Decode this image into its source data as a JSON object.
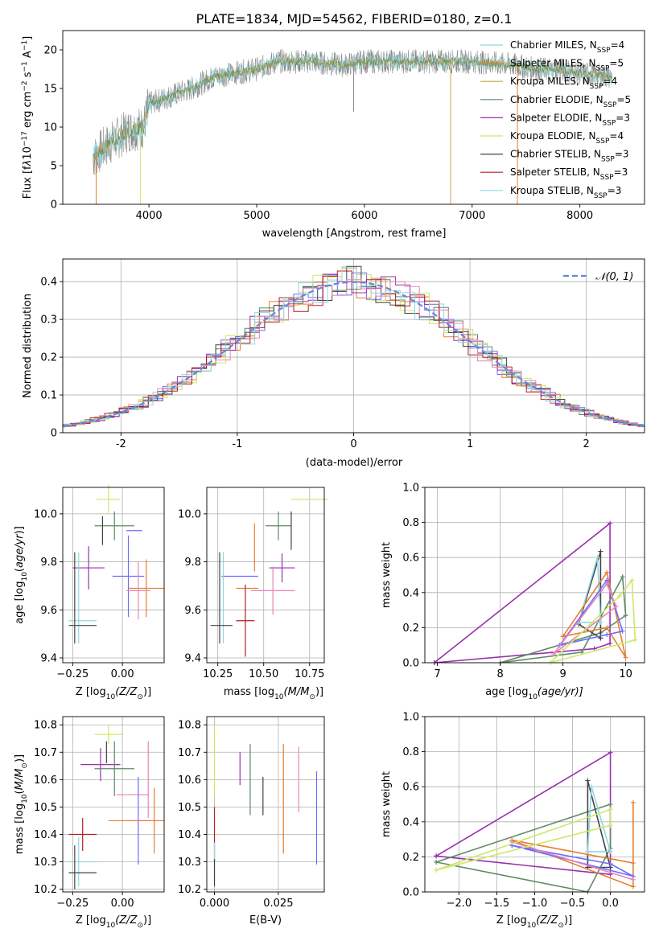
{
  "figure": {
    "title": "PLATE=1834, MJD=54562, FIBERID=0180, z=0.1"
  },
  "colors": {
    "c1": "#6b6bff",
    "c2": "#8a8a8a",
    "c3": "#e87d2c",
    "c4": "#5f8a64",
    "c5": "#9b2fae",
    "c6": "#cde86a",
    "c7": "#444444",
    "c8": "#b21e1e",
    "c9": "#8fd8e0",
    "c10": "#e685b8",
    "normal": "#5b8dd9"
  },
  "chart_data": [
    {
      "id": "spectrum",
      "type": "line",
      "xlabel": "wavelength [Angstrom, rest frame]",
      "xlim": [
        3200,
        8600
      ],
      "ylim": [
        0,
        22.5
      ],
      "xticks": [
        4000,
        5000,
        6000,
        7000,
        8000
      ],
      "yticks": [
        0,
        5,
        10,
        15,
        20
      ],
      "grid": false,
      "legend_position": "top-right",
      "legend": [
        {
          "label": "Chabrier MILES, N",
          "sub": "SSP",
          "eq": "=4",
          "color": "#8fd8e0"
        },
        {
          "label": "Salpeter MILES, N",
          "sub": "SSP",
          "eq": "=5",
          "color": "#e87d2c"
        },
        {
          "label": "Kroupa MILES, N",
          "sub": "SSP",
          "eq": "=4",
          "color": "#c7a24a"
        },
        {
          "label": "Chabrier ELODIE, N",
          "sub": "SSP",
          "eq": "=5",
          "color": "#5f8a64"
        },
        {
          "label": "Salpeter ELODIE, N",
          "sub": "SSP",
          "eq": "=3",
          "color": "#9b2fae"
        },
        {
          "label": "Kroupa ELODIE, N",
          "sub": "SSP",
          "eq": "=4",
          "color": "#cde86a"
        },
        {
          "label": "Chabrier STELIB, N",
          "sub": "SSP",
          "eq": "=3",
          "color": "#444444"
        },
        {
          "label": "Salpeter STELIB, N",
          "sub": "SSP",
          "eq": "=3",
          "color": "#b21e1e"
        },
        {
          "label": "Kroupa STELIB, N",
          "sub": "SSP",
          "eq": "=3",
          "color": "#8fd8e0"
        }
      ],
      "continuum": [
        [
          3480,
          6
        ],
        [
          3600,
          7.5
        ],
        [
          3800,
          9.5
        ],
        [
          3950,
          10
        ],
        [
          4000,
          13
        ],
        [
          4200,
          14
        ],
        [
          4400,
          15
        ],
        [
          4600,
          16.5
        ],
        [
          4800,
          17
        ],
        [
          5000,
          17.5
        ],
        [
          5200,
          18.5
        ],
        [
          5500,
          18.5
        ],
        [
          5800,
          18
        ],
        [
          6000,
          18.5
        ],
        [
          6300,
          18.5
        ],
        [
          6600,
          18.5
        ],
        [
          7000,
          18.5
        ],
        [
          7400,
          18
        ],
        [
          7600,
          17.5
        ],
        [
          7800,
          17.5
        ],
        [
          8000,
          17
        ],
        [
          8300,
          16.5
        ]
      ]
    },
    {
      "id": "residuals",
      "type": "line",
      "xlabel": "(data-model)/error",
      "ylabel": "Normed distribution",
      "xlim": [
        -2.5,
        2.5
      ],
      "ylim": [
        0,
        0.46
      ],
      "xticks": [
        -2,
        -1,
        0,
        1,
        2
      ],
      "yticks": [
        0.0,
        0.1,
        0.2,
        0.3,
        0.4
      ],
      "grid": true,
      "legend_position": "top-right",
      "legend_label": "𝒩(0, 1)",
      "bin_width": 0.125
    },
    {
      "id": "age-vs-Z",
      "type": "scatter",
      "xlabel_pre": "Z [log",
      "xlabel_sub": "10",
      "xlabel_post": "(Z/Z",
      "xlabel_sun": "⊙",
      "xlabel_end": ")]",
      "ylabel_text": "age  [log10(age/yr)]",
      "xlim": [
        -0.3,
        0.21
      ],
      "ylim": [
        9.38,
        10.11
      ],
      "xticks": [
        -0.25,
        0.0
      ],
      "xticklabels": [
        "−0.25",
        "0.00"
      ],
      "yticks": [
        9.4,
        9.6,
        9.8,
        10.0
      ],
      "yticklabels": [
        "9.4",
        "9.6",
        "9.8",
        "10.0"
      ],
      "grid": true,
      "points": [
        {
          "x": -0.07,
          "y": 10.06,
          "xerr": 0.06,
          "yerr": 0.06,
          "color": "#cde86a"
        },
        {
          "x": -0.04,
          "y": 9.95,
          "xerr": 0.1,
          "yerr": 0.06,
          "color": "#5f8a64"
        },
        {
          "x": -0.1,
          "y": 9.93,
          "xerr": 0.0,
          "yerr": 0.06,
          "color": "#444444"
        },
        {
          "x": 0.06,
          "y": 9.93,
          "xerr": 0.04,
          "yerr": 0.0,
          "color": "#6b6bff"
        },
        {
          "x": -0.17,
          "y": 9.775,
          "xerr": 0.08,
          "yerr": 0.09,
          "color": "#9b2fae"
        },
        {
          "x": 0.03,
          "y": 9.74,
          "xerr": 0.08,
          "yerr": 0.17,
          "color": "#6b6bff"
        },
        {
          "x": 0.12,
          "y": 9.69,
          "xerr": 0.09,
          "yerr": 0.12,
          "color": "#e87d2c"
        },
        {
          "x": 0.08,
          "y": 9.68,
          "xerr": 0.06,
          "yerr": 0.12,
          "color": "#e685b8"
        },
        {
          "x": -0.2,
          "y": 9.555,
          "xerr": 0.07,
          "yerr": 0.0,
          "color": "#8fd8e0"
        },
        {
          "x": -0.22,
          "y": 9.65,
          "xerr": 0.0,
          "yerr": 0.19,
          "color": "#8fd8e0"
        },
        {
          "x": -0.2,
          "y": 9.535,
          "xerr": 0.07,
          "yerr": 0.0,
          "color": "#444444"
        },
        {
          "x": -0.24,
          "y": 9.65,
          "xerr": 0.0,
          "yerr": 0.19,
          "color": "#444444"
        }
      ]
    },
    {
      "id": "age-vs-mass",
      "type": "scatter",
      "xlabel_pre": "mass [log",
      "xlabel_sub": "10",
      "xlabel_post": "(M/M",
      "xlabel_sun": "⊙",
      "xlabel_end": ")]",
      "xlim": [
        10.19,
        10.83
      ],
      "ylim": [
        9.38,
        10.11
      ],
      "xticks": [
        10.25,
        10.5,
        10.75
      ],
      "xticklabels": [
        "10.25",
        "10.50",
        "10.75"
      ],
      "yticks": [
        9.4,
        9.6,
        9.8,
        10.0
      ],
      "yticklabels": [
        "9.4",
        "9.6",
        "9.8",
        "10.0"
      ],
      "grid": true,
      "points": [
        {
          "x": 10.75,
          "y": 10.06,
          "xerr": 0.1,
          "yerr": 0.0,
          "color": "#cde86a"
        },
        {
          "x": 10.58,
          "y": 9.95,
          "xerr": 0.07,
          "yerr": 0.06,
          "color": "#5f8a64"
        },
        {
          "x": 10.65,
          "y": 9.93,
          "xerr": 0.0,
          "yerr": 0.08,
          "color": "#444444"
        },
        {
          "x": 10.45,
          "y": 9.86,
          "xerr": 0.0,
          "yerr": 0.1,
          "color": "#e87d2c"
        },
        {
          "x": 10.6,
          "y": 9.775,
          "xerr": 0.07,
          "yerr": 0.06,
          "color": "#9b2fae"
        },
        {
          "x": 10.37,
          "y": 9.74,
          "xerr": 0.1,
          "yerr": 0.0,
          "color": "#6b6bff"
        },
        {
          "x": 10.41,
          "y": 9.69,
          "xerr": 0.06,
          "yerr": 0.0,
          "color": "#e87d2c"
        },
        {
          "x": 10.55,
          "y": 9.68,
          "xerr": 0.12,
          "yerr": 0.1,
          "color": "#e685b8"
        },
        {
          "x": 10.4,
          "y": 9.555,
          "xerr": 0.05,
          "yerr": 0.15,
          "color": "#b21e1e"
        },
        {
          "x": 10.28,
          "y": 9.65,
          "xerr": 0.0,
          "yerr": 0.19,
          "color": "#8fd8e0"
        },
        {
          "x": 10.27,
          "y": 9.535,
          "xerr": 0.06,
          "yerr": 0.0,
          "color": "#444444"
        },
        {
          "x": 10.26,
          "y": 9.65,
          "xerr": 0.0,
          "yerr": 0.19,
          "color": "#444444"
        }
      ]
    },
    {
      "id": "mass-vs-Z",
      "type": "scatter",
      "ylabel_text": "mass [log10(M/M☉)]",
      "xlim": [
        -0.3,
        0.21
      ],
      "ylim": [
        10.19,
        10.83
      ],
      "xticks": [
        -0.25,
        0.0
      ],
      "xticklabels": [
        "−0.25",
        "0.00"
      ],
      "yticks": [
        10.2,
        10.3,
        10.4,
        10.5,
        10.6,
        10.7,
        10.8
      ],
      "yticklabels": [
        "10.2",
        "10.3",
        "10.4",
        "10.5",
        "10.6",
        "10.7",
        "10.8"
      ],
      "grid": true,
      "points": [
        {
          "x": -0.07,
          "y": 10.765,
          "xerr": 0.07,
          "yerr": 0.035,
          "color": "#cde86a"
        },
        {
          "x": -0.11,
          "y": 10.655,
          "xerr": 0.1,
          "yerr": 0.06,
          "color": "#9b2fae"
        },
        {
          "x": -0.04,
          "y": 10.64,
          "xerr": 0.1,
          "yerr": 0.1,
          "color": "#5f8a64"
        },
        {
          "x": -0.08,
          "y": 10.7,
          "xerr": 0.0,
          "yerr": 0.04,
          "color": "#444444"
        },
        {
          "x": 0.13,
          "y": 10.6,
          "xerr": 0.0,
          "yerr": 0.14,
          "color": "#e685b8"
        },
        {
          "x": 0.05,
          "y": 10.545,
          "xerr": 0.08,
          "yerr": 0.0,
          "color": "#e685b8"
        },
        {
          "x": 0.08,
          "y": 10.45,
          "xerr": 0.06,
          "yerr": 0.16,
          "color": "#6b6bff"
        },
        {
          "x": 0.07,
          "y": 10.45,
          "xerr": 0.14,
          "yerr": 0.0,
          "color": "#e87d2c"
        },
        {
          "x": 0.16,
          "y": 10.45,
          "xerr": 0.0,
          "yerr": 0.12,
          "color": "#e87d2c"
        },
        {
          "x": -0.2,
          "y": 10.4,
          "xerr": 0.07,
          "yerr": 0.06,
          "color": "#b21e1e"
        },
        {
          "x": -0.2,
          "y": 10.3,
          "xerr": 0.07,
          "yerr": 0.0,
          "color": "#8fd8e0"
        },
        {
          "x": -0.22,
          "y": 10.3,
          "xerr": 0.0,
          "yerr": 0.09,
          "color": "#8fd8e0"
        },
        {
          "x": -0.2,
          "y": 10.26,
          "xerr": 0.07,
          "yerr": 0.0,
          "color": "#444444"
        },
        {
          "x": -0.24,
          "y": 10.28,
          "xerr": 0.0,
          "yerr": 0.08,
          "color": "#444444"
        }
      ]
    },
    {
      "id": "mass-vs-EBV",
      "type": "scatter",
      "xlabel_text": "E(B-V)",
      "xlim": [
        -0.003,
        0.043
      ],
      "ylim": [
        10.19,
        10.83
      ],
      "xticks": [
        0.0,
        0.025
      ],
      "xticklabels": [
        "0.000",
        "0.025"
      ],
      "yticks": [
        10.2,
        10.3,
        10.4,
        10.5,
        10.6,
        10.7,
        10.8
      ],
      "yticklabels": [
        "10.2",
        "10.3",
        "10.4",
        "10.5",
        "10.6",
        "10.7",
        "10.8"
      ],
      "grid": true,
      "points": [
        {
          "x": 0.0,
          "y": 10.67,
          "xerr": 0.0,
          "yerr": 0.13,
          "color": "#cde86a"
        },
        {
          "x": 0.01,
          "y": 10.64,
          "xerr": 0.0,
          "yerr": 0.06,
          "color": "#9b2fae"
        },
        {
          "x": 0.014,
          "y": 10.6,
          "xerr": 0.0,
          "yerr": 0.13,
          "color": "#5f8a64"
        },
        {
          "x": 0.019,
          "y": 10.54,
          "xerr": 0.0,
          "yerr": 0.07,
          "color": "#444444"
        },
        {
          "x": 0.027,
          "y": 10.53,
          "xerr": 0.0,
          "yerr": 0.2,
          "color": "#e87d2c"
        },
        {
          "x": 0.033,
          "y": 10.6,
          "xerr": 0.0,
          "yerr": 0.12,
          "color": "#e685b8"
        },
        {
          "x": 0.04,
          "y": 10.46,
          "xerr": 0.0,
          "yerr": 0.17,
          "color": "#6b6bff"
        },
        {
          "x": 0.0,
          "y": 10.4,
          "xerr": 0.0,
          "yerr": 0.1,
          "color": "#b21e1e"
        },
        {
          "x": 0.0,
          "y": 10.3,
          "xerr": 0.0,
          "yerr": 0.07,
          "color": "#8fd8e0"
        },
        {
          "x": 0.0,
          "y": 10.26,
          "xerr": 0.0,
          "yerr": 0.05,
          "color": "#444444"
        }
      ]
    },
    {
      "id": "weight-vs-age",
      "type": "line",
      "ylabel": "mass weight",
      "xlabel_pre": "age  [log",
      "xlabel_sub": "10",
      "xlabel_post": "(age/yr)]",
      "xlim": [
        6.8,
        10.3
      ],
      "ylim": [
        0,
        1.0
      ],
      "xticks": [
        7,
        8,
        9,
        10
      ],
      "xticklabels": [
        "7",
        "8",
        "9",
        "10"
      ],
      "yticks": [
        0.0,
        0.2,
        0.4,
        0.6,
        0.8,
        1.0
      ],
      "yticklabels": [
        "0.0",
        "0.2",
        "0.4",
        "0.6",
        "0.8",
        "1.0"
      ],
      "grid": true,
      "series": [
        {
          "color": "#9b2fae",
          "x": [
            6.95,
            9.75,
            9.75,
            9.5,
            6.95
          ],
          "y": [
            0.0,
            0.795,
            0.11,
            0.08,
            0.0
          ]
        },
        {
          "color": "#5f8a64",
          "x": [
            8.0,
            9.3,
            9.95,
            10.0,
            9.6,
            8.0
          ],
          "y": [
            0.0,
            0.06,
            0.49,
            0.27,
            0.17,
            0.0
          ]
        },
        {
          "color": "#444444",
          "x": [
            9.6,
            9.6,
            9.25,
            9.6
          ],
          "y": [
            0.14,
            0.635,
            0.22,
            0.14
          ]
        },
        {
          "color": "#8fd8e0",
          "x": [
            9.25,
            9.55,
            9.6,
            9.25
          ],
          "y": [
            0.23,
            0.6,
            0.23,
            0.23
          ]
        },
        {
          "color": "#e87d2c",
          "x": [
            9.0,
            9.7,
            10.0,
            9.7,
            9.0
          ],
          "y": [
            0.15,
            0.515,
            0.03,
            0.2,
            0.15
          ]
        },
        {
          "color": "#6b6bff",
          "x": [
            8.95,
            9.7,
            9.95,
            9.7,
            8.95
          ],
          "y": [
            0.1,
            0.47,
            0.18,
            0.16,
            0.1
          ]
        },
        {
          "color": "#e685b8",
          "x": [
            8.85,
            9.7,
            9.85,
            8.85
          ],
          "y": [
            0.05,
            0.45,
            0.32,
            0.05
          ]
        },
        {
          "color": "#cde86a",
          "x": [
            8.8,
            9.9,
            10.1,
            10.15,
            8.8
          ],
          "y": [
            0.0,
            0.38,
            0.47,
            0.13,
            0.0
          ]
        }
      ]
    },
    {
      "id": "weight-vs-Z",
      "type": "line",
      "ylabel": "mass weight",
      "xlabel_pre": "Z [log",
      "xlabel_sub": "10",
      "xlabel_post": "(Z/Z",
      "xlabel_sun": "⊙",
      "xlabel_end": ")]",
      "xlim": [
        -2.45,
        0.45
      ],
      "ylim": [
        0,
        1.0
      ],
      "xticks": [
        -2.0,
        -1.5,
        -1.0,
        -0.5,
        0.0
      ],
      "xticklabels": [
        "−2.0",
        "−1.5",
        "−1.0",
        "−0.5",
        "0.0"
      ],
      "yticks": [
        0.0,
        0.2,
        0.4,
        0.6,
        0.8,
        1.0
      ],
      "yticklabels": [
        "0.0",
        "0.2",
        "0.4",
        "0.6",
        "0.8",
        "1.0"
      ],
      "grid": true,
      "series": [
        {
          "color": "#9b2fae",
          "x": [
            -2.3,
            0.0,
            0.0,
            0.0,
            -2.3
          ],
          "y": [
            0.205,
            0.795,
            0.5,
            0.1,
            0.205
          ]
        },
        {
          "color": "#5f8a64",
          "x": [
            -2.3,
            -0.3,
            0.0,
            0.0,
            -2.3
          ],
          "y": [
            0.17,
            0.0,
            0.25,
            0.5,
            0.17
          ]
        },
        {
          "color": "#444444",
          "x": [
            -0.3,
            -0.3,
            0.0,
            -0.3
          ],
          "y": [
            0.14,
            0.635,
            0.14,
            0.14
          ]
        },
        {
          "color": "#8fd8e0",
          "x": [
            -0.3,
            -0.25,
            0.0,
            -0.3
          ],
          "y": [
            0.23,
            0.6,
            0.23,
            0.23
          ]
        },
        {
          "color": "#e87d2c",
          "x": [
            -1.3,
            0.3,
            0.3,
            0.3,
            -1.3
          ],
          "y": [
            0.295,
            0.165,
            0.51,
            0.03,
            0.295
          ]
        },
        {
          "color": "#6b6bff",
          "x": [
            -1.3,
            0.3,
            0.0,
            -1.3
          ],
          "y": [
            0.265,
            0.09,
            0.16,
            0.265
          ]
        },
        {
          "color": "#e685b8",
          "x": [
            -1.3,
            0.3,
            -1.3
          ],
          "y": [
            0.285,
            0.07,
            0.285
          ]
        },
        {
          "color": "#cde86a",
          "x": [
            -2.3,
            0.0,
            0.0,
            -2.3
          ],
          "y": [
            0.125,
            0.38,
            0.47,
            0.125
          ]
        }
      ]
    }
  ]
}
